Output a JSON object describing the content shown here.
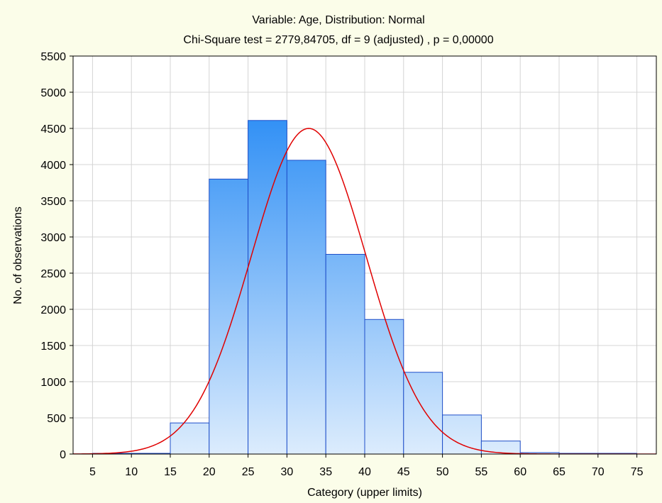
{
  "chart_data": {
    "type": "bar",
    "title": "Variable: Age, Distribution: Normal",
    "subtitle": "Chi-Square test = 2779,84705, df = 9 (adjusted) , p = 0,00000",
    "xlabel": "Category (upper limits)",
    "ylabel": "No. of observations",
    "x_ticks": [
      "5",
      "10",
      "15",
      "20",
      "25",
      "30",
      "35",
      "40",
      "45",
      "50",
      "55",
      "60",
      "65",
      "70",
      "75"
    ],
    "y_ticks": [
      "0",
      "500",
      "1000",
      "1500",
      "2000",
      "2500",
      "3000",
      "3500",
      "4000",
      "4500",
      "5000",
      "5500"
    ],
    "xlim": [
      2.5,
      77.5
    ],
    "ylim": [
      0,
      5500
    ],
    "grid": true,
    "bins": [
      {
        "lower": 5,
        "upper": 10,
        "value": 2
      },
      {
        "lower": 10,
        "upper": 15,
        "value": 5
      },
      {
        "lower": 15,
        "upper": 20,
        "value": 430
      },
      {
        "lower": 20,
        "upper": 25,
        "value": 3800
      },
      {
        "lower": 25,
        "upper": 30,
        "value": 4610
      },
      {
        "lower": 30,
        "upper": 35,
        "value": 4060
      },
      {
        "lower": 35,
        "upper": 40,
        "value": 2760
      },
      {
        "lower": 40,
        "upper": 45,
        "value": 1860
      },
      {
        "lower": 45,
        "upper": 50,
        "value": 1130
      },
      {
        "lower": 50,
        "upper": 55,
        "value": 540
      },
      {
        "lower": 55,
        "upper": 60,
        "value": 180
      },
      {
        "lower": 60,
        "upper": 65,
        "value": 20
      },
      {
        "lower": 65,
        "upper": 70,
        "value": 3
      },
      {
        "lower": 70,
        "upper": 75,
        "value": 1
      }
    ],
    "fit_curve": {
      "distribution": "normal",
      "mean": 32.8,
      "std": 7.4,
      "peak": 4500
    },
    "colors": {
      "bar_top": "#3391f5",
      "bar_bottom": "#dcecfd",
      "bar_stroke": "#1f4fc9",
      "curve": "#e00000",
      "background": "#fbfde9",
      "plot_bg": "#ffffff",
      "grid": "#d4d4d4"
    }
  }
}
